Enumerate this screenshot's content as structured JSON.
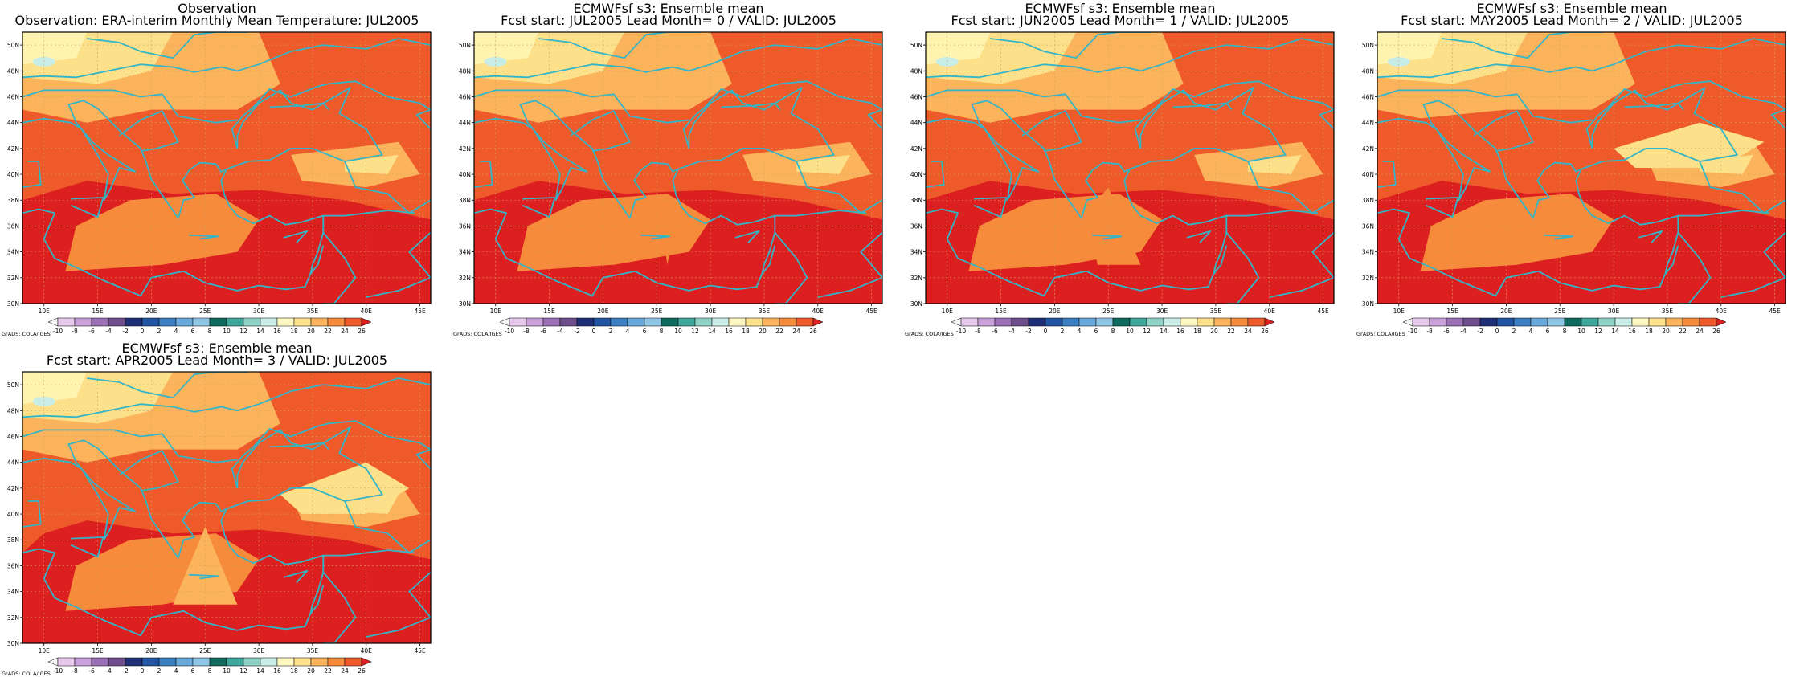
{
  "panels": [
    {
      "title_line1": "Observation",
      "title_line2": "Observation: ERA-interim Monthly Mean Temperature: JUL2005",
      "variant": 0
    },
    {
      "title_line1": "ECMWFsf s3: Ensemble mean",
      "title_line2": "Fcst start: JUL2005   Lead Month= 0 / VALID: JUL2005",
      "variant": 1
    },
    {
      "title_line1": "ECMWFsf s3: Ensemble mean",
      "title_line2": "Fcst start: JUN2005   Lead Month= 1 / VALID: JUL2005",
      "variant": 2
    },
    {
      "title_line1": "ECMWFsf s3: Ensemble mean",
      "title_line2": "Fcst start: MAY2005   Lead Month= 2 / VALID: JUL2005",
      "variant": 3
    },
    {
      "title_line1": "ECMWFsf s3: Ensemble mean",
      "title_line2": "Fcst start: APR2005   Lead Month= 3 / VALID: JUL2005",
      "variant": 4
    }
  ],
  "lat_labels": [
    "50N",
    "48N",
    "46N",
    "44N",
    "42N",
    "40N",
    "38N",
    "36N",
    "34N",
    "32N",
    "30N"
  ],
  "lon_labels": [
    "10E",
    "15E",
    "20E",
    "25E",
    "30E",
    "35E",
    "40E",
    "45E"
  ],
  "colorbar": {
    "tick_labels": [
      "-10",
      "-8",
      "-6",
      "-4",
      "-2",
      "0",
      "2",
      "4",
      "6",
      "8",
      "10",
      "12",
      "14",
      "16",
      "18",
      "20",
      "22",
      "24",
      "26"
    ],
    "colors": [
      "#f5f5f5",
      "#e6c8ec",
      "#c9a0dc",
      "#9b6fb5",
      "#6e4e8c",
      "#1f2f78",
      "#2255a4",
      "#3a7fc2",
      "#67a9da",
      "#8ec6e6",
      "#0e6b5e",
      "#3ea89c",
      "#8fd3c8",
      "#c8ece6",
      "#fff7c0",
      "#fce08a",
      "#fbb45c",
      "#f78b3c",
      "#ee5a2a",
      "#dc2020"
    ]
  },
  "credit": "GrADS: COLA/IGES",
  "legend_scale_colors": {
    "t26": "#dc2020",
    "t24": "#ee5a2a",
    "t22": "#f78b3c",
    "t20": "#fbb45c",
    "t18": "#fce08a",
    "t16": "#fff3b0",
    "t14": "#c8ece6",
    "coast": "#33b5c8"
  }
}
